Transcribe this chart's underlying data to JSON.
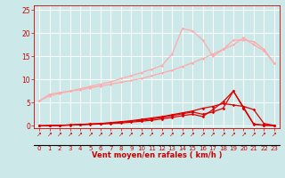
{
  "background_color": "#cce8e8",
  "grid_color": "#ffffff",
  "xlabel": "Vent moyen/en rafales ( km/h )",
  "xlabel_color": "#cc0000",
  "tick_color": "#cc0000",
  "x_values": [
    0,
    1,
    2,
    3,
    4,
    5,
    6,
    7,
    8,
    9,
    10,
    11,
    12,
    13,
    14,
    15,
    16,
    17,
    18,
    19,
    20,
    21,
    22,
    23
  ],
  "ylim": [
    -0.5,
    26
  ],
  "xlim": [
    -0.5,
    23.5
  ],
  "yticks": [
    0,
    5,
    10,
    15,
    20,
    25
  ],
  "line1_y": [
    5.4,
    6.8,
    7.2,
    7.5,
    7.8,
    8.2,
    8.6,
    9.0,
    9.4,
    9.8,
    10.2,
    10.8,
    11.4,
    12.0,
    12.8,
    13.6,
    14.5,
    15.5,
    16.5,
    18.5,
    18.5,
    18.2,
    16.5,
    13.5
  ],
  "line1_color": "#ffaaaa",
  "line2_y": [
    5.4,
    6.5,
    7.0,
    7.5,
    8.0,
    8.5,
    9.0,
    9.5,
    10.2,
    10.8,
    11.5,
    12.2,
    13.0,
    15.5,
    21.0,
    20.5,
    18.5,
    15.0,
    16.5,
    17.5,
    19.0,
    17.5,
    16.2,
    13.5
  ],
  "line2_color": "#ffaaaa",
  "line3_y": [
    0.0,
    0.05,
    0.1,
    0.2,
    0.3,
    0.4,
    0.5,
    0.7,
    0.9,
    1.1,
    1.4,
    1.7,
    2.0,
    2.4,
    2.8,
    3.2,
    3.8,
    4.2,
    4.8,
    4.5,
    4.2,
    3.5,
    0.5,
    0.1
  ],
  "line3_color": "#dd0000",
  "line4_y": [
    0.0,
    0.05,
    0.1,
    0.2,
    0.3,
    0.4,
    0.5,
    0.6,
    0.8,
    1.0,
    1.2,
    1.5,
    1.8,
    2.2,
    2.6,
    3.0,
    2.5,
    3.0,
    3.8,
    7.5,
    3.8,
    0.3,
    0.1,
    0.05
  ],
  "line4_color": "#dd0000",
  "line5_y": [
    0.0,
    0.05,
    0.1,
    0.15,
    0.2,
    0.3,
    0.4,
    0.5,
    0.6,
    0.8,
    1.0,
    1.2,
    1.5,
    1.8,
    2.2,
    2.5,
    2.0,
    3.5,
    5.2,
    7.5,
    4.0,
    0.4,
    0.15,
    0.05
  ],
  "line5_color": "#dd0000"
}
